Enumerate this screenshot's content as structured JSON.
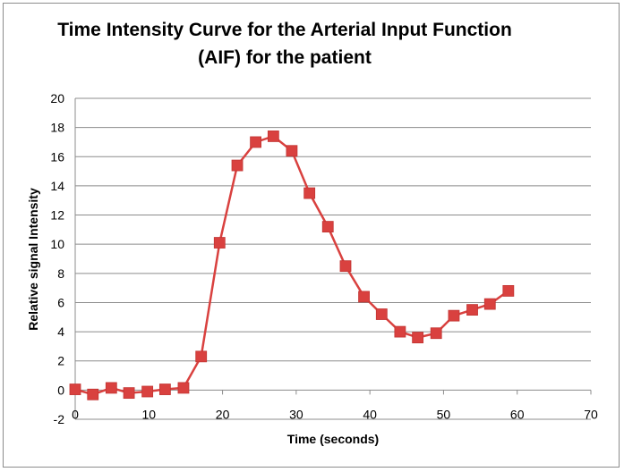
{
  "chart_data": {
    "type": "line",
    "title_lines": [
      "Time Intensity Curve for the Arterial Input Function",
      "(AIF) for the patient"
    ],
    "xlabel": "Time (seconds)",
    "ylabel": "Relative signal Intensity",
    "xlim": [
      0,
      70
    ],
    "ylim": [
      -2,
      20
    ],
    "x_ticks": [
      0,
      10,
      20,
      30,
      40,
      50,
      60,
      70
    ],
    "y_ticks": [
      -2,
      0,
      2,
      4,
      6,
      8,
      10,
      12,
      14,
      16,
      18,
      20
    ],
    "grid": "horizontal",
    "legend": "none",
    "series": [
      {
        "color": "#d9413f",
        "marker": "square",
        "x": [
          0,
          2.4,
          4.9,
          7.3,
          9.8,
          12.2,
          14.7,
          17.1,
          19.6,
          22.0,
          24.5,
          26.9,
          29.4,
          31.8,
          34.3,
          36.7,
          39.2,
          41.6,
          44.1,
          46.5,
          49.0,
          51.4,
          53.9,
          56.3,
          58.8
        ],
        "y": [
          0.05,
          -0.3,
          0.15,
          -0.2,
          -0.1,
          0.05,
          0.15,
          2.3,
          10.1,
          15.4,
          17.0,
          17.4,
          16.4,
          13.5,
          11.2,
          8.5,
          6.4,
          5.2,
          4.0,
          3.6,
          3.9,
          5.1,
          5.5,
          5.9,
          6.8
        ]
      }
    ]
  }
}
